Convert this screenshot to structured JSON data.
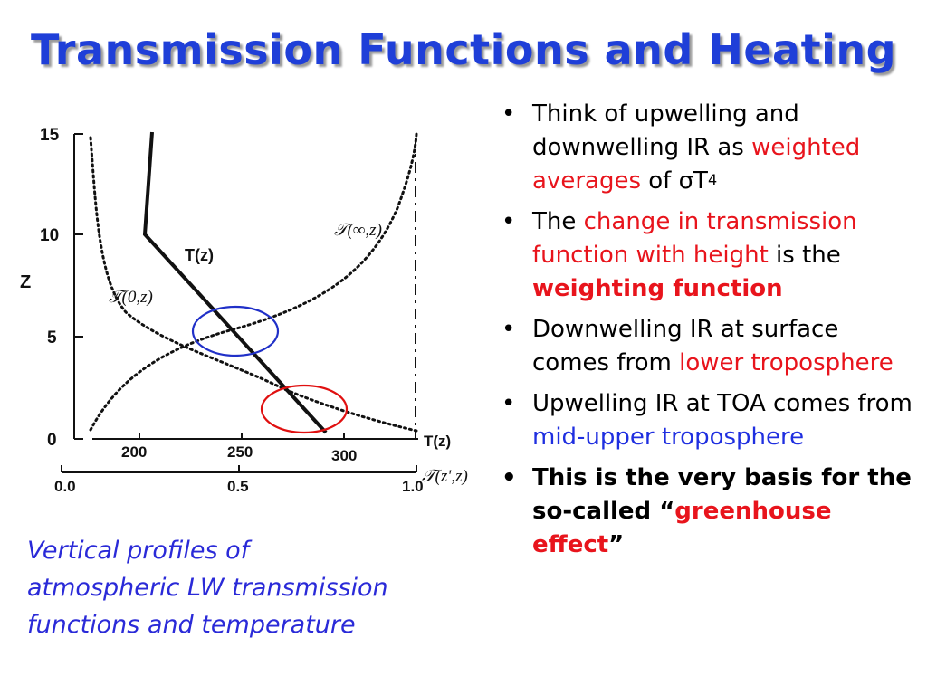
{
  "title": "Transmission Functions and Heating",
  "figure": {
    "z_axis_label": "Z",
    "z_ticks": [
      "0",
      "5",
      "10",
      "15"
    ],
    "t_ticks": [
      "200",
      "250",
      "300"
    ],
    "t_axis_label": "T(z)",
    "tau_ticks": [
      "0.0",
      "0.5",
      "1.0"
    ],
    "tau_axis_label": "𝒯(z',z)",
    "curve_labels": {
      "temperature": "T(z)",
      "tau_inf_z": "𝒯(∞,z)",
      "tau_0_z": "𝒯(0,z)"
    },
    "highlight_colors": {
      "upper": "#2030c8",
      "lower": "#e01010"
    }
  },
  "caption": {
    "line1": "Vertical profiles of",
    "line2": "atmospheric LW transmission",
    "line3": "functions and temperature"
  },
  "bullets": [
    {
      "a": "Think of upwelling and downwelling IR as ",
      "b": "weighted averages",
      "c": " of σT",
      "sup": "4"
    },
    {
      "a": "The ",
      "b": "change in transmission function with height",
      "c": " is the ",
      "d": "weighting function"
    },
    {
      "a": "Downwelling IR at surface comes from ",
      "b": "lower troposphere"
    },
    {
      "a": "Upwelling IR at TOA comes from ",
      "b": "mid-upper troposphere"
    },
    {
      "a": "This is the very basis for the so-called “",
      "b": "greenhouse effect",
      "c": "”"
    }
  ],
  "bullet_symbol": "•"
}
